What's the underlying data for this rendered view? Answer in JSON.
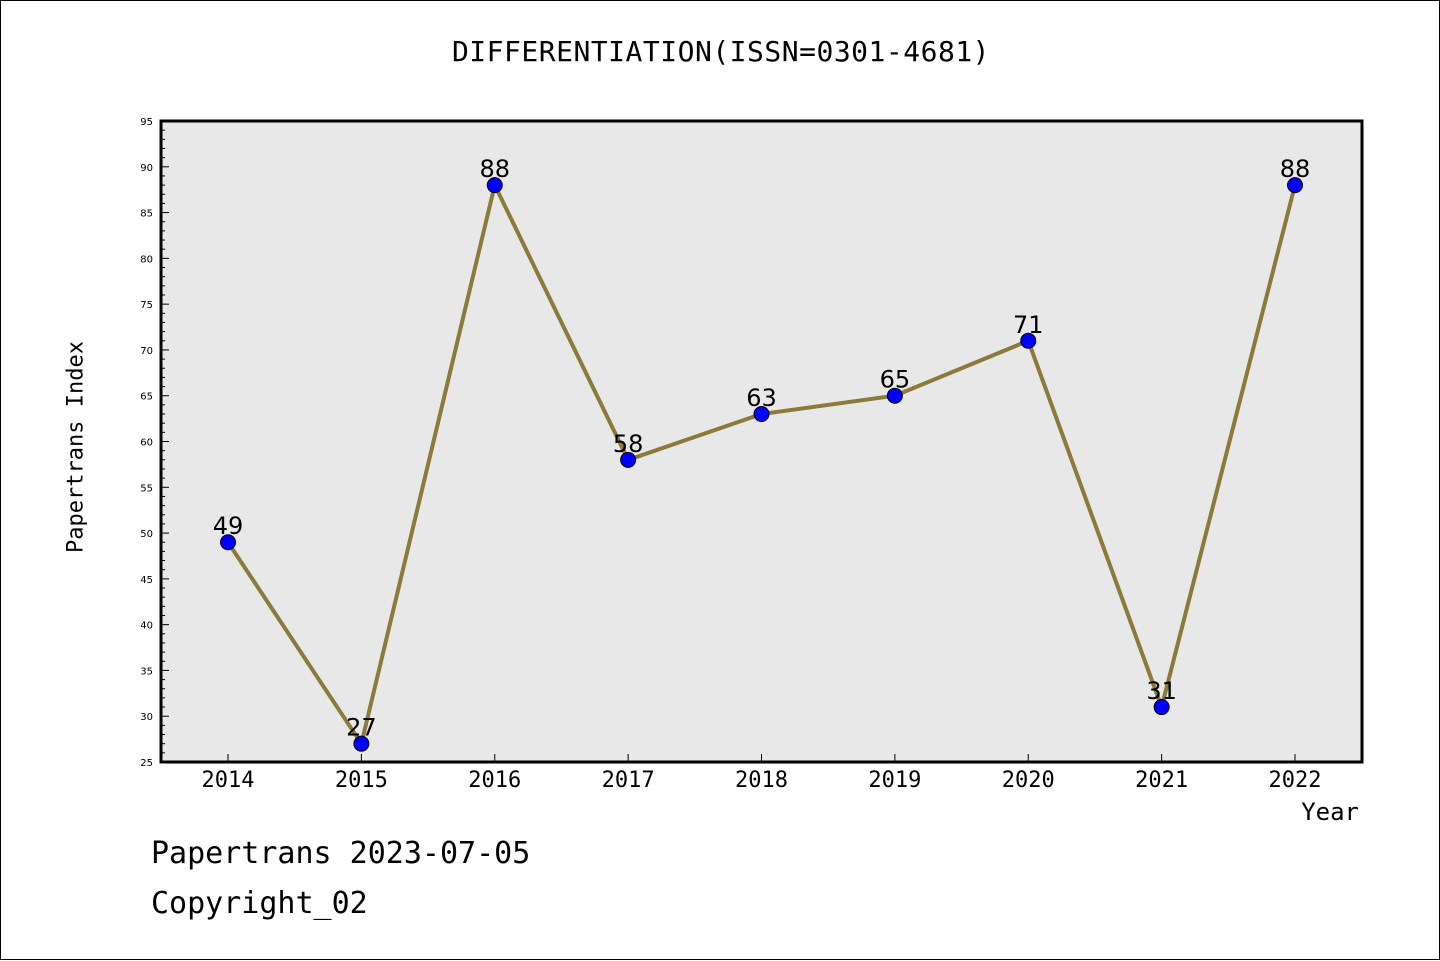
{
  "chart_data": {
    "type": "line",
    "title": "DIFFERENTIATION(ISSN=0301-4681)",
    "xlabel": "Year",
    "ylabel": "Papertrans Index",
    "categories": [
      "2014",
      "2015",
      "2016",
      "2017",
      "2018",
      "2019",
      "2020",
      "2021",
      "2022"
    ],
    "values": [
      49,
      27,
      88,
      58,
      63,
      65,
      71,
      31,
      88
    ],
    "data_labels": [
      "49",
      "27",
      "88",
      "58",
      "63",
      "65",
      "71",
      "31",
      "88"
    ],
    "ylim": [
      25,
      95
    ],
    "yticks": [
      25,
      30,
      35,
      40,
      45,
      50,
      55,
      60,
      65,
      70,
      75,
      80,
      85,
      90,
      95
    ],
    "grid": false,
    "colors": {
      "line": "#8b7a3a",
      "marker": "#0000ff",
      "plot_background": "#e8e8e8"
    }
  },
  "footer": {
    "date": "Papertrans 2023-07-05",
    "copyright": "Copyright_02"
  }
}
